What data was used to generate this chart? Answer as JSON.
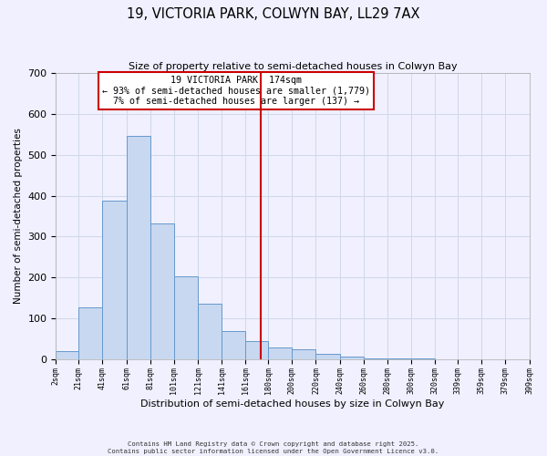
{
  "title_line1": "19, VICTORIA PARK, COLWYN BAY, LL29 7AX",
  "title_line2": "Size of property relative to semi-detached houses in Colwyn Bay",
  "xlabel": "Distribution of semi-detached houses by size in Colwyn Bay",
  "ylabel": "Number of semi-detached properties",
  "bar_color": "#c8d8f0",
  "bar_edge_color": "#6699cc",
  "bin_edges": [
    2,
    21,
    41,
    61,
    81,
    101,
    121,
    141,
    161,
    180,
    200,
    220,
    240,
    260,
    280,
    300,
    320,
    339,
    359,
    379,
    399
  ],
  "bin_labels": [
    "2sqm",
    "21sqm",
    "41sqm",
    "61sqm",
    "81sqm",
    "101sqm",
    "121sqm",
    "141sqm",
    "161sqm",
    "180sqm",
    "200sqm",
    "220sqm",
    "240sqm",
    "260sqm",
    "280sqm",
    "300sqm",
    "320sqm",
    "339sqm",
    "359sqm",
    "379sqm",
    "399sqm"
  ],
  "counts": [
    20,
    128,
    388,
    546,
    332,
    204,
    136,
    70,
    45,
    30,
    25,
    15,
    8,
    4,
    3,
    2,
    1,
    1,
    0,
    0
  ],
  "vline_x": 174,
  "vline_color": "#cc0000",
  "ylim": [
    0,
    700
  ],
  "yticks": [
    0,
    100,
    200,
    300,
    400,
    500,
    600,
    700
  ],
  "annotation_title": "19 VICTORIA PARK: 174sqm",
  "annotation_line2": "← 93% of semi-detached houses are smaller (1,779)",
  "annotation_line3": "7% of semi-detached houses are larger (137) →",
  "annotation_box_color": "#ffffff",
  "annotation_box_edge": "#cc0000",
  "grid_color": "#d0d8e8",
  "background_color": "#f0f0ff",
  "footer_line1": "Contains HM Land Registry data © Crown copyright and database right 2025.",
  "footer_line2": "Contains public sector information licensed under the Open Government Licence v3.0."
}
